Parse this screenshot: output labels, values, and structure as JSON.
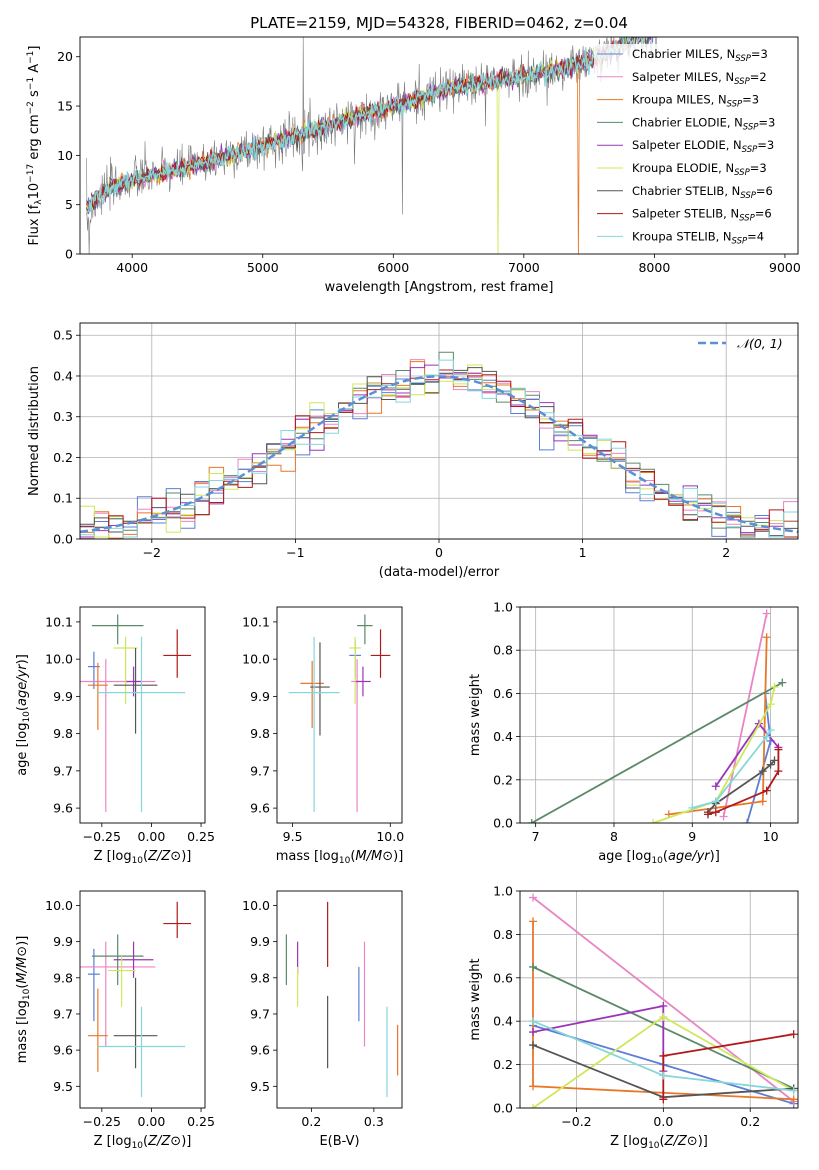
{
  "title": "PLATE=2159, MJD=54328, FIBERID=0462, z=0.04",
  "model_colors": {
    "Chabrier MILES": "#5b7fd6",
    "Salpeter MILES": "#e985c5",
    "Kroupa MILES": "#e8772a",
    "Chabrier ELODIE": "#5a8a68",
    "Salpeter ELODIE": "#9b34b8",
    "Kroupa ELODIE": "#cfe85a",
    "Chabrier STELIB": "#555555",
    "Salpeter STELIB": "#b01a1a",
    "Kroupa STELIB": "#86d6dc"
  },
  "spectrum_legend": [
    {
      "label": "Chabrier MILES, N",
      "sub": "SSP",
      "suffix": "=3"
    },
    {
      "label": "Salpeter MILES, N",
      "sub": "SSP",
      "suffix": "=2"
    },
    {
      "label": "Kroupa MILES, N",
      "sub": "SSP",
      "suffix": "=3"
    },
    {
      "label": "Chabrier ELODIE, N",
      "sub": "SSP",
      "suffix": "=3"
    },
    {
      "label": "Salpeter ELODIE, N",
      "sub": "SSP",
      "suffix": "=3"
    },
    {
      "label": "Kroupa ELODIE, N",
      "sub": "SSP",
      "suffix": "=3"
    },
    {
      "label": "Chabrier STELIB, N",
      "sub": "SSP",
      "suffix": "=6"
    },
    {
      "label": "Salpeter STELIB, N",
      "sub": "SSP",
      "suffix": "=6"
    },
    {
      "label": "Kroupa STELIB, N",
      "sub": "SSP",
      "suffix": "=4"
    }
  ],
  "chart_data": [
    {
      "id": "spectrum",
      "type": "line",
      "xlabel": "wavelength [Angstrom, rest frame]",
      "ylabel": "Flux [f_λ 10^-17 erg cm^-2 s^-1 A^-1]",
      "xlim": [
        3600,
        9100
      ],
      "ylim": [
        0,
        22
      ],
      "xticks": [
        4000,
        5000,
        6000,
        7000,
        8000,
        9000
      ],
      "yticks": [
        0,
        5,
        10,
        15,
        20
      ],
      "continuum": [
        [
          3650,
          4.5
        ],
        [
          3800,
          6.5
        ],
        [
          4000,
          7.5
        ],
        [
          4500,
          9
        ],
        [
          5000,
          11
        ],
        [
          5500,
          13
        ],
        [
          6000,
          15
        ],
        [
          6500,
          17
        ],
        [
          7000,
          18
        ],
        [
          7500,
          19.5
        ],
        [
          7800,
          21.5
        ],
        [
          8000,
          22.5
        ]
      ],
      "grid": false
    },
    {
      "id": "residuals",
      "type": "histogram",
      "xlabel": "(data-model)/error",
      "ylabel": "Normed distribution",
      "xlim": [
        -2.5,
        2.5
      ],
      "ylim": [
        0,
        0.53
      ],
      "xticks": [
        -2,
        -1,
        0,
        1,
        2
      ],
      "yticks": [
        0,
        0.1,
        0.2,
        0.3,
        0.4,
        0.5
      ],
      "legend": "𝒩(0, 1)",
      "grid": true
    },
    {
      "id": "age_vs_Z",
      "type": "scatter",
      "xlabel": "Z [log10(Z/Z⊙)]",
      "ylabel": "age [log10(age/yr)]",
      "xlim": [
        -0.36,
        0.27
      ],
      "ylim": [
        9.56,
        10.14
      ],
      "xticks": [
        -0.25,
        0.0,
        0.25
      ],
      "yticks": [
        9.6,
        9.7,
        9.8,
        9.9,
        10.0,
        10.1
      ],
      "points": [
        {
          "model": "Chabrier MILES",
          "x": -0.29,
          "xerr": 0.03,
          "y": 9.98,
          "yerr": [
            0.06,
            0.04
          ]
        },
        {
          "model": "Salpeter MILES",
          "x": -0.23,
          "xerr": 0.25,
          "y": 9.94,
          "yerr": [
            0.35,
            0.06
          ]
        },
        {
          "model": "Kroupa MILES",
          "x": -0.27,
          "xerr": 0.05,
          "y": 9.93,
          "yerr": [
            0.12,
            0.06
          ]
        },
        {
          "model": "Chabrier ELODIE",
          "x": -0.17,
          "xerr": 0.13,
          "y": 10.09,
          "yerr": [
            0.05,
            0.03
          ]
        },
        {
          "model": "Salpeter ELODIE",
          "x": -0.09,
          "xerr": 0.04,
          "y": 9.94,
          "yerr": [
            0.04,
            0.04
          ]
        },
        {
          "model": "Kroupa ELODIE",
          "x": -0.13,
          "xerr": 0.06,
          "y": 10.03,
          "yerr": [
            0.15,
            0.03
          ]
        },
        {
          "model": "Chabrier STELIB",
          "x": -0.08,
          "xerr": 0.11,
          "y": 9.93,
          "yerr": [
            0.13,
            0.1
          ]
        },
        {
          "model": "Salpeter STELIB",
          "x": 0.13,
          "xerr": 0.07,
          "y": 10.01,
          "yerr": [
            0.06,
            0.07
          ]
        },
        {
          "model": "Kroupa STELIB",
          "x": -0.05,
          "xerr": 0.22,
          "y": 9.91,
          "yerr": [
            0.32,
            0.15
          ]
        }
      ]
    },
    {
      "id": "age_vs_mass",
      "type": "scatter",
      "xlabel": "mass [log10(M/M⊙)]",
      "ylabel": "",
      "xlim": [
        9.42,
        10.06
      ],
      "ylim": [
        9.56,
        10.14
      ],
      "xticks": [
        9.5,
        10.0
      ],
      "yticks": [
        9.6,
        9.7,
        9.8,
        9.9,
        10.0,
        10.1
      ],
      "points": [
        {
          "model": "Chabrier MILES",
          "x": 9.82,
          "xerr": 0.03,
          "y": 10.01,
          "yerr": [
            0.06,
            0.04
          ]
        },
        {
          "model": "Salpeter MILES",
          "x": 9.83,
          "xerr": 0.03,
          "y": 9.94,
          "yerr": [
            0.35,
            0.06
          ]
        },
        {
          "model": "Kroupa MILES",
          "x": 9.6,
          "xerr": 0.06,
          "y": 9.935,
          "yerr": [
            0.12,
            0.06
          ]
        },
        {
          "model": "Chabrier ELODIE",
          "x": 9.87,
          "xerr": 0.04,
          "y": 10.09,
          "yerr": [
            0.05,
            0.03
          ]
        },
        {
          "model": "Salpeter ELODIE",
          "x": 9.86,
          "xerr": 0.04,
          "y": 9.94,
          "yerr": [
            0.04,
            0.04
          ]
        },
        {
          "model": "Kroupa ELODIE",
          "x": 9.82,
          "xerr": 0.03,
          "y": 10.03,
          "yerr": [
            0.15,
            0.03
          ]
        },
        {
          "model": "Chabrier STELIB",
          "x": 9.64,
          "xerr": 0.05,
          "y": 9.925,
          "yerr": [
            0.13,
            0.12
          ]
        },
        {
          "model": "Salpeter STELIB",
          "x": 9.95,
          "xerr": 0.05,
          "y": 10.01,
          "yerr": [
            0.06,
            0.07
          ]
        },
        {
          "model": "Kroupa STELIB",
          "x": 9.61,
          "xerr": 0.13,
          "y": 9.91,
          "yerr": [
            0.32,
            0.15
          ]
        }
      ]
    },
    {
      "id": "massweight_vs_age",
      "type": "line",
      "xlabel": "age [log10(age/yr)]",
      "ylabel": "mass weight",
      "xlim": [
        6.8,
        10.35
      ],
      "ylim": [
        0,
        1.0
      ],
      "xticks": [
        7,
        8,
        9,
        10
      ],
      "yticks": [
        0.0,
        0.2,
        0.4,
        0.6,
        0.8,
        1.0
      ],
      "grid": true,
      "series": [
        {
          "model": "Chabrier MILES",
          "x": [
            9.7,
            10.0,
            9.93
          ],
          "y": [
            0.0,
            0.38,
            0.6
          ]
        },
        {
          "model": "Salpeter MILES",
          "x": [
            9.4,
            9.95
          ],
          "y": [
            0.03,
            0.97
          ]
        },
        {
          "model": "Kroupa MILES",
          "x": [
            8.7,
            9.9,
            9.95
          ],
          "y": [
            0.04,
            0.1,
            0.86
          ]
        },
        {
          "model": "Chabrier ELODIE",
          "x": [
            6.95,
            10.15
          ],
          "y": [
            0.0,
            0.65
          ]
        },
        {
          "model": "Salpeter ELODIE",
          "x": [
            9.3,
            9.85,
            10.1
          ],
          "y": [
            0.17,
            0.46,
            0.35
          ]
        },
        {
          "model": "Kroupa ELODIE",
          "x": [
            8.5,
            9.3,
            10.0,
            10.05
          ],
          "y": [
            0.0,
            0.1,
            0.55,
            0.63
          ]
        },
        {
          "model": "Chabrier STELIB",
          "x": [
            9.2,
            9.3,
            9.9,
            10.0,
            10.05
          ],
          "y": [
            0.05,
            0.09,
            0.24,
            0.27,
            0.29
          ]
        },
        {
          "model": "Salpeter STELIB",
          "x": [
            9.2,
            9.3,
            9.95,
            10.1,
            10.1
          ],
          "y": [
            0.04,
            0.05,
            0.15,
            0.24,
            0.34
          ]
        },
        {
          "model": "Kroupa STELIB",
          "x": [
            9.0,
            9.3,
            9.95,
            10.0
          ],
          "y": [
            0.07,
            0.1,
            0.4,
            0.43
          ]
        }
      ]
    },
    {
      "id": "mass_vs_Z",
      "type": "scatter",
      "xlabel": "Z [log10(Z/Z⊙)]",
      "ylabel": "mass [log10(M/M⊙)]",
      "xlim": [
        -0.36,
        0.27
      ],
      "ylim": [
        9.44,
        10.04
      ],
      "xticks": [
        -0.25,
        0.0,
        0.25
      ],
      "yticks": [
        9.5,
        9.6,
        9.7,
        9.8,
        9.9,
        10.0
      ],
      "points": [
        {
          "model": "Chabrier MILES",
          "x": -0.29,
          "xerr": 0.03,
          "y": 9.81,
          "yerr": [
            0.13,
            0.07
          ]
        },
        {
          "model": "Salpeter MILES",
          "x": -0.23,
          "xerr": 0.25,
          "y": 9.83,
          "yerr": [
            0.22,
            0.07
          ]
        },
        {
          "model": "Kroupa MILES",
          "x": -0.27,
          "xerr": 0.05,
          "y": 9.64,
          "yerr": [
            0.1,
            0.13
          ]
        },
        {
          "model": "Chabrier ELODIE",
          "x": -0.17,
          "xerr": 0.13,
          "y": 9.86,
          "yerr": [
            0.08,
            0.06
          ]
        },
        {
          "model": "Salpeter ELODIE",
          "x": -0.09,
          "xerr": 0.1,
          "y": 9.85,
          "yerr": [
            0.05,
            0.05
          ]
        },
        {
          "model": "Kroupa ELODIE",
          "x": -0.15,
          "xerr": 0.07,
          "y": 9.82,
          "yerr": [
            0.1,
            0.04
          ]
        },
        {
          "model": "Chabrier STELIB",
          "x": -0.08,
          "xerr": 0.11,
          "y": 9.64,
          "yerr": [
            0.09,
            0.16
          ]
        },
        {
          "model": "Salpeter STELIB",
          "x": 0.13,
          "xerr": 0.07,
          "y": 9.95,
          "yerr": [
            0.04,
            0.06
          ]
        },
        {
          "model": "Kroupa STELIB",
          "x": -0.05,
          "xerr": 0.22,
          "y": 9.61,
          "yerr": [
            0.14,
            0.11
          ]
        }
      ]
    },
    {
      "id": "mass_vs_EBV",
      "type": "scatter",
      "xlabel": "E(B-V)",
      "ylabel": "",
      "xlim": [
        0.145,
        0.345
      ],
      "ylim": [
        9.44,
        10.04
      ],
      "xticks": [
        0.2,
        0.3
      ],
      "yticks": [
        9.5,
        9.6,
        9.7,
        9.8,
        9.9,
        10.0
      ],
      "points": [
        {
          "model": "Chabrier MILES",
          "x": 0.276,
          "y": 9.76,
          "yerr": [
            0.08,
            0.07
          ]
        },
        {
          "model": "Salpeter MILES",
          "x": 0.285,
          "y": 9.77,
          "yerr": [
            0.16,
            0.13
          ]
        },
        {
          "model": "Kroupa MILES",
          "x": 0.338,
          "y": 9.6,
          "yerr": [
            0.07,
            0.07
          ]
        },
        {
          "model": "Chabrier ELODIE",
          "x": 0.16,
          "y": 9.85,
          "yerr": [
            0.07,
            0.07
          ]
        },
        {
          "model": "Salpeter ELODIE",
          "x": 0.178,
          "y": 9.85,
          "yerr": [
            0.04,
            0.05
          ]
        },
        {
          "model": "Kroupa ELODIE",
          "x": 0.178,
          "y": 9.78,
          "yerr": [
            0.06,
            0.05
          ]
        },
        {
          "model": "Chabrier STELIB",
          "x": 0.226,
          "y": 9.65,
          "yerr": [
            0.1,
            0.1
          ]
        },
        {
          "model": "Salpeter STELIB",
          "x": 0.226,
          "y": 9.92,
          "yerr": [
            0.09,
            0.09
          ]
        },
        {
          "model": "Kroupa STELIB",
          "x": 0.321,
          "y": 9.56,
          "yerr": [
            0.09,
            0.16
          ]
        }
      ]
    },
    {
      "id": "massweight_vs_Z",
      "type": "line",
      "xlabel": "Z [log10(Z/Z⊙)]",
      "ylabel": "mass weight",
      "xlim": [
        -0.33,
        0.31
      ],
      "ylim": [
        0,
        1.0
      ],
      "xticks": [
        -0.2,
        0.0,
        0.2
      ],
      "yticks": [
        0.0,
        0.2,
        0.4,
        0.6,
        0.8,
        1.0
      ],
      "grid": true,
      "series": [
        {
          "model": "Chabrier MILES",
          "x": [
            -0.3,
            0.0,
            0.3
          ],
          "y": [
            0.38,
            0.2,
            0.02
          ]
        },
        {
          "model": "Salpeter MILES",
          "x": [
            -0.3,
            0.3
          ],
          "y": [
            0.97,
            0.03
          ]
        },
        {
          "model": "Kroupa MILES",
          "x": [
            -0.3,
            -0.3,
            0.3
          ],
          "y": [
            0.86,
            0.1,
            0.04
          ]
        },
        {
          "model": "Chabrier ELODIE",
          "x": [
            -0.3,
            0.3
          ],
          "y": [
            0.65,
            0.09
          ]
        },
        {
          "model": "Salpeter ELODIE",
          "x": [
            -0.3,
            0.0,
            0.0
          ],
          "y": [
            0.35,
            0.47,
            0.17
          ]
        },
        {
          "model": "Kroupa ELODIE",
          "x": [
            -0.3,
            0.0,
            0.3
          ],
          "y": [
            0.0,
            0.42,
            0.08
          ]
        },
        {
          "model": "Chabrier STELIB",
          "x": [
            -0.3,
            0.0,
            0.3
          ],
          "y": [
            0.29,
            0.05,
            0.09
          ]
        },
        {
          "model": "Salpeter STELIB",
          "x": [
            0.0,
            0.0,
            0.3
          ],
          "y": [
            0.04,
            0.24,
            0.34
          ]
        },
        {
          "model": "Kroupa STELIB",
          "x": [
            -0.3,
            0.0,
            0.3
          ],
          "y": [
            0.4,
            0.15,
            0.08
          ]
        }
      ]
    }
  ]
}
